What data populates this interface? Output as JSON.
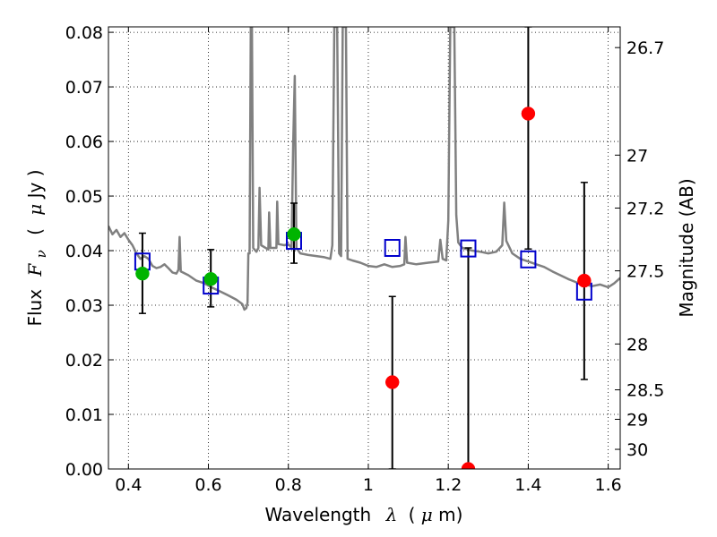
{
  "chart_data": {
    "type": "scatter",
    "title": "",
    "xlabel_text": "Wavelength",
    "xlabel_symbol": "λ",
    "xlabel_unit_open": "(",
    "xlabel_unit_mu": "μ",
    "xlabel_unit_rest": "m)",
    "ylabel_text": "Flux",
    "ylabel_symbol": "F",
    "ylabel_subscript": "ν",
    "ylabel_unit_open": "(",
    "ylabel_unit_mu": "μ",
    "ylabel_unit_rest": "Jy )",
    "y2label": "Magnitude (AB)",
    "xlim": [
      0.35,
      1.63
    ],
    "ylim": [
      0.0,
      0.081
    ],
    "grid": true,
    "grid_style": "dotted",
    "x_ticks": [
      0.4,
      0.6,
      0.8,
      1.0,
      1.2,
      1.4,
      1.6
    ],
    "x_tick_labels": [
      "0.4",
      "0.6",
      "0.8",
      "1",
      "1.2",
      "1.4",
      "1.6"
    ],
    "y_ticks": [
      0.0,
      0.01,
      0.02,
      0.03,
      0.04,
      0.05,
      0.06,
      0.07,
      0.08
    ],
    "y_tick_labels": [
      "0.00",
      "0.01",
      "0.02",
      "0.03",
      "0.04",
      "0.05",
      "0.06",
      "0.07",
      "0.08"
    ],
    "y2_ticks": [
      {
        "label": "26.7",
        "flux": 0.0772
      },
      {
        "label": "27",
        "flux": 0.0575
      },
      {
        "label": "27.2",
        "flux": 0.0478
      },
      {
        "label": "27.5",
        "flux": 0.0363
      },
      {
        "label": "28",
        "flux": 0.0229
      },
      {
        "label": "28.5",
        "flux": 0.0145
      },
      {
        "label": "29",
        "flux": 0.0091
      },
      {
        "label": "30",
        "flux": 0.0036
      }
    ],
    "colors": {
      "spectrum": "#808080",
      "detection": "#00b400",
      "nondetection": "#ff0000",
      "model": "#0000cc",
      "errorbar": "#000000",
      "grid": "#000000"
    },
    "series": [
      {
        "marker": "circle-green",
        "points": [
          {
            "x": 0.435,
            "y": 0.0358,
            "yerr_low": 0.0285,
            "yerr_high": 0.0432
          },
          {
            "x": 0.606,
            "y": 0.0348,
            "yerr_low": 0.0297,
            "yerr_high": 0.0402
          },
          {
            "x": 0.814,
            "y": 0.043,
            "yerr_low": 0.0377,
            "yerr_high": 0.0487
          }
        ]
      },
      {
        "marker": "circle-red",
        "points": [
          {
            "x": 1.06,
            "y": 0.0159,
            "yerr_low": 0.0,
            "yerr_high": 0.0316
          },
          {
            "x": 1.25,
            "y": 0.0,
            "yerr_low": 0.0,
            "yerr_high": 0.0405
          },
          {
            "x": 1.4,
            "y": 0.0651,
            "yerr_low": 0.0403,
            "yerr_high": 0.081
          },
          {
            "x": 1.54,
            "y": 0.0345,
            "yerr_low": 0.0164,
            "yerr_high": 0.0525
          }
        ]
      },
      {
        "marker": "square-open-blue",
        "points": [
          {
            "x": 0.435,
            "y": 0.038
          },
          {
            "x": 0.606,
            "y": 0.0336
          },
          {
            "x": 0.814,
            "y": 0.0418
          },
          {
            "x": 1.06,
            "y": 0.0405
          },
          {
            "x": 1.25,
            "y": 0.0404
          },
          {
            "x": 1.4,
            "y": 0.0384
          },
          {
            "x": 1.54,
            "y": 0.0325
          }
        ]
      },
      {
        "marker": "line-gray",
        "points": [
          {
            "x": 0.35,
            "y": 0.0445
          },
          {
            "x": 0.36,
            "y": 0.043
          },
          {
            "x": 0.37,
            "y": 0.0438
          },
          {
            "x": 0.38,
            "y": 0.0425
          },
          {
            "x": 0.39,
            "y": 0.0432
          },
          {
            "x": 0.4,
            "y": 0.042
          },
          {
            "x": 0.41,
            "y": 0.041
          },
          {
            "x": 0.42,
            "y": 0.0395
          },
          {
            "x": 0.43,
            "y": 0.0385
          },
          {
            "x": 0.44,
            "y": 0.039
          },
          {
            "x": 0.45,
            "y": 0.0385
          },
          {
            "x": 0.46,
            "y": 0.0372
          },
          {
            "x": 0.47,
            "y": 0.0368
          },
          {
            "x": 0.48,
            "y": 0.037
          },
          {
            "x": 0.49,
            "y": 0.0375
          },
          {
            "x": 0.5,
            "y": 0.0368
          },
          {
            "x": 0.51,
            "y": 0.036
          },
          {
            "x": 0.52,
            "y": 0.0358
          },
          {
            "x": 0.525,
            "y": 0.0365
          },
          {
            "x": 0.528,
            "y": 0.0425
          },
          {
            "x": 0.531,
            "y": 0.0362
          },
          {
            "x": 0.55,
            "y": 0.0355
          },
          {
            "x": 0.57,
            "y": 0.0345
          },
          {
            "x": 0.59,
            "y": 0.034
          },
          {
            "x": 0.61,
            "y": 0.0332
          },
          {
            "x": 0.63,
            "y": 0.0325
          },
          {
            "x": 0.65,
            "y": 0.0318
          },
          {
            "x": 0.67,
            "y": 0.031
          },
          {
            "x": 0.685,
            "y": 0.0302
          },
          {
            "x": 0.69,
            "y": 0.0292
          },
          {
            "x": 0.695,
            "y": 0.0295
          },
          {
            "x": 0.698,
            "y": 0.0305
          },
          {
            "x": 0.7,
            "y": 0.0395
          },
          {
            "x": 0.703,
            "y": 0.0395
          },
          {
            "x": 0.706,
            "y": 0.081
          },
          {
            "x": 0.709,
            "y": 0.081
          },
          {
            "x": 0.712,
            "y": 0.0405
          },
          {
            "x": 0.72,
            "y": 0.0398
          },
          {
            "x": 0.725,
            "y": 0.0405
          },
          {
            "x": 0.728,
            "y": 0.0515
          },
          {
            "x": 0.732,
            "y": 0.041
          },
          {
            "x": 0.75,
            "y": 0.0402
          },
          {
            "x": 0.752,
            "y": 0.047
          },
          {
            "x": 0.755,
            "y": 0.0405
          },
          {
            "x": 0.77,
            "y": 0.0405
          },
          {
            "x": 0.772,
            "y": 0.049
          },
          {
            "x": 0.775,
            "y": 0.0412
          },
          {
            "x": 0.79,
            "y": 0.041
          },
          {
            "x": 0.8,
            "y": 0.0412
          },
          {
            "x": 0.808,
            "y": 0.0405
          },
          {
            "x": 0.812,
            "y": 0.0595
          },
          {
            "x": 0.816,
            "y": 0.072
          },
          {
            "x": 0.82,
            "y": 0.0405
          },
          {
            "x": 0.83,
            "y": 0.0395
          },
          {
            "x": 0.85,
            "y": 0.0392
          },
          {
            "x": 0.87,
            "y": 0.039
          },
          {
            "x": 0.89,
            "y": 0.0388
          },
          {
            "x": 0.905,
            "y": 0.0385
          },
          {
            "x": 0.91,
            "y": 0.041
          },
          {
            "x": 0.915,
            "y": 0.081
          },
          {
            "x": 0.922,
            "y": 0.081
          },
          {
            "x": 0.927,
            "y": 0.0395
          },
          {
            "x": 0.932,
            "y": 0.039
          },
          {
            "x": 0.936,
            "y": 0.081
          },
          {
            "x": 0.944,
            "y": 0.081
          },
          {
            "x": 0.948,
            "y": 0.0385
          },
          {
            "x": 0.96,
            "y": 0.0382
          },
          {
            "x": 0.98,
            "y": 0.0378
          },
          {
            "x": 1.0,
            "y": 0.0372
          },
          {
            "x": 1.02,
            "y": 0.037
          },
          {
            "x": 1.04,
            "y": 0.0375
          },
          {
            "x": 1.06,
            "y": 0.037
          },
          {
            "x": 1.08,
            "y": 0.0372
          },
          {
            "x": 1.09,
            "y": 0.0375
          },
          {
            "x": 1.093,
            "y": 0.0425
          },
          {
            "x": 1.097,
            "y": 0.0378
          },
          {
            "x": 1.12,
            "y": 0.0375
          },
          {
            "x": 1.15,
            "y": 0.0378
          },
          {
            "x": 1.175,
            "y": 0.038
          },
          {
            "x": 1.18,
            "y": 0.042
          },
          {
            "x": 1.186,
            "y": 0.0385
          },
          {
            "x": 1.195,
            "y": 0.0382
          },
          {
            "x": 1.2,
            "y": 0.0455
          },
          {
            "x": 1.205,
            "y": 0.081
          },
          {
            "x": 1.215,
            "y": 0.081
          },
          {
            "x": 1.22,
            "y": 0.0465
          },
          {
            "x": 1.225,
            "y": 0.0415
          },
          {
            "x": 1.235,
            "y": 0.0405
          },
          {
            "x": 1.26,
            "y": 0.04
          },
          {
            "x": 1.28,
            "y": 0.0398
          },
          {
            "x": 1.3,
            "y": 0.0395
          },
          {
            "x": 1.32,
            "y": 0.0398
          },
          {
            "x": 1.335,
            "y": 0.041
          },
          {
            "x": 1.34,
            "y": 0.0488
          },
          {
            "x": 1.345,
            "y": 0.0418
          },
          {
            "x": 1.36,
            "y": 0.0395
          },
          {
            "x": 1.38,
            "y": 0.0385
          },
          {
            "x": 1.4,
            "y": 0.038
          },
          {
            "x": 1.42,
            "y": 0.0375
          },
          {
            "x": 1.44,
            "y": 0.037
          },
          {
            "x": 1.46,
            "y": 0.0362
          },
          {
            "x": 1.48,
            "y": 0.0355
          },
          {
            "x": 1.5,
            "y": 0.0348
          },
          {
            "x": 1.52,
            "y": 0.0342
          },
          {
            "x": 1.54,
            "y": 0.0338
          },
          {
            "x": 1.56,
            "y": 0.0335
          },
          {
            "x": 1.58,
            "y": 0.0338
          },
          {
            "x": 1.6,
            "y": 0.0333
          },
          {
            "x": 1.615,
            "y": 0.034
          },
          {
            "x": 1.63,
            "y": 0.035
          }
        ]
      }
    ]
  }
}
